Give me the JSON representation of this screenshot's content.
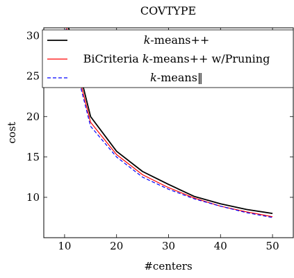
{
  "chart_data": {
    "type": "line",
    "title": "COVTYPE",
    "xlabel": "#centers",
    "ylabel": "cost",
    "xlim": [
      6,
      54
    ],
    "ylim": [
      5,
      31
    ],
    "x_ticks": [
      10,
      20,
      30,
      40,
      50
    ],
    "y_ticks": [
      10,
      15,
      20,
      25,
      30
    ],
    "grid": false,
    "legend_position": "top",
    "series": [
      {
        "name": "k-means++",
        "legend_parts": [
          {
            "text": "k",
            "italic": true
          },
          {
            "text": "-means++",
            "italic": false
          }
        ],
        "color": "#000000",
        "style": "solid",
        "x": [
          10,
          15,
          20,
          25,
          30,
          35,
          40,
          45,
          50
        ],
        "y": [
          33,
          20.0,
          15.7,
          13.2,
          11.6,
          10.1,
          9.2,
          8.5,
          8.0
        ]
      },
      {
        "name": "BiCriteria k-means++ w/Pruning",
        "legend_parts": [
          {
            "text": "BiCriteria ",
            "italic": false
          },
          {
            "text": "k",
            "italic": true
          },
          {
            "text": "-means++ w/Pruning",
            "italic": false
          }
        ],
        "color": "#ff0000",
        "style": "solid",
        "x": [
          10,
          15,
          20,
          25,
          30,
          35,
          40,
          45,
          50
        ],
        "y": [
          32,
          19.3,
          15.3,
          12.8,
          11.2,
          9.9,
          8.9,
          8.2,
          7.6
        ]
      },
      {
        "name": "k-means‖",
        "legend_parts": [
          {
            "text": "k",
            "italic": true
          },
          {
            "text": "-means‖",
            "italic": false
          }
        ],
        "color": "#0000ff",
        "style": "dashed",
        "x": [
          10,
          15,
          20,
          25,
          30,
          35,
          40,
          45,
          50
        ],
        "y": [
          31.5,
          18.8,
          15.0,
          12.5,
          11.0,
          9.8,
          8.9,
          8.1,
          7.5
        ]
      }
    ]
  }
}
